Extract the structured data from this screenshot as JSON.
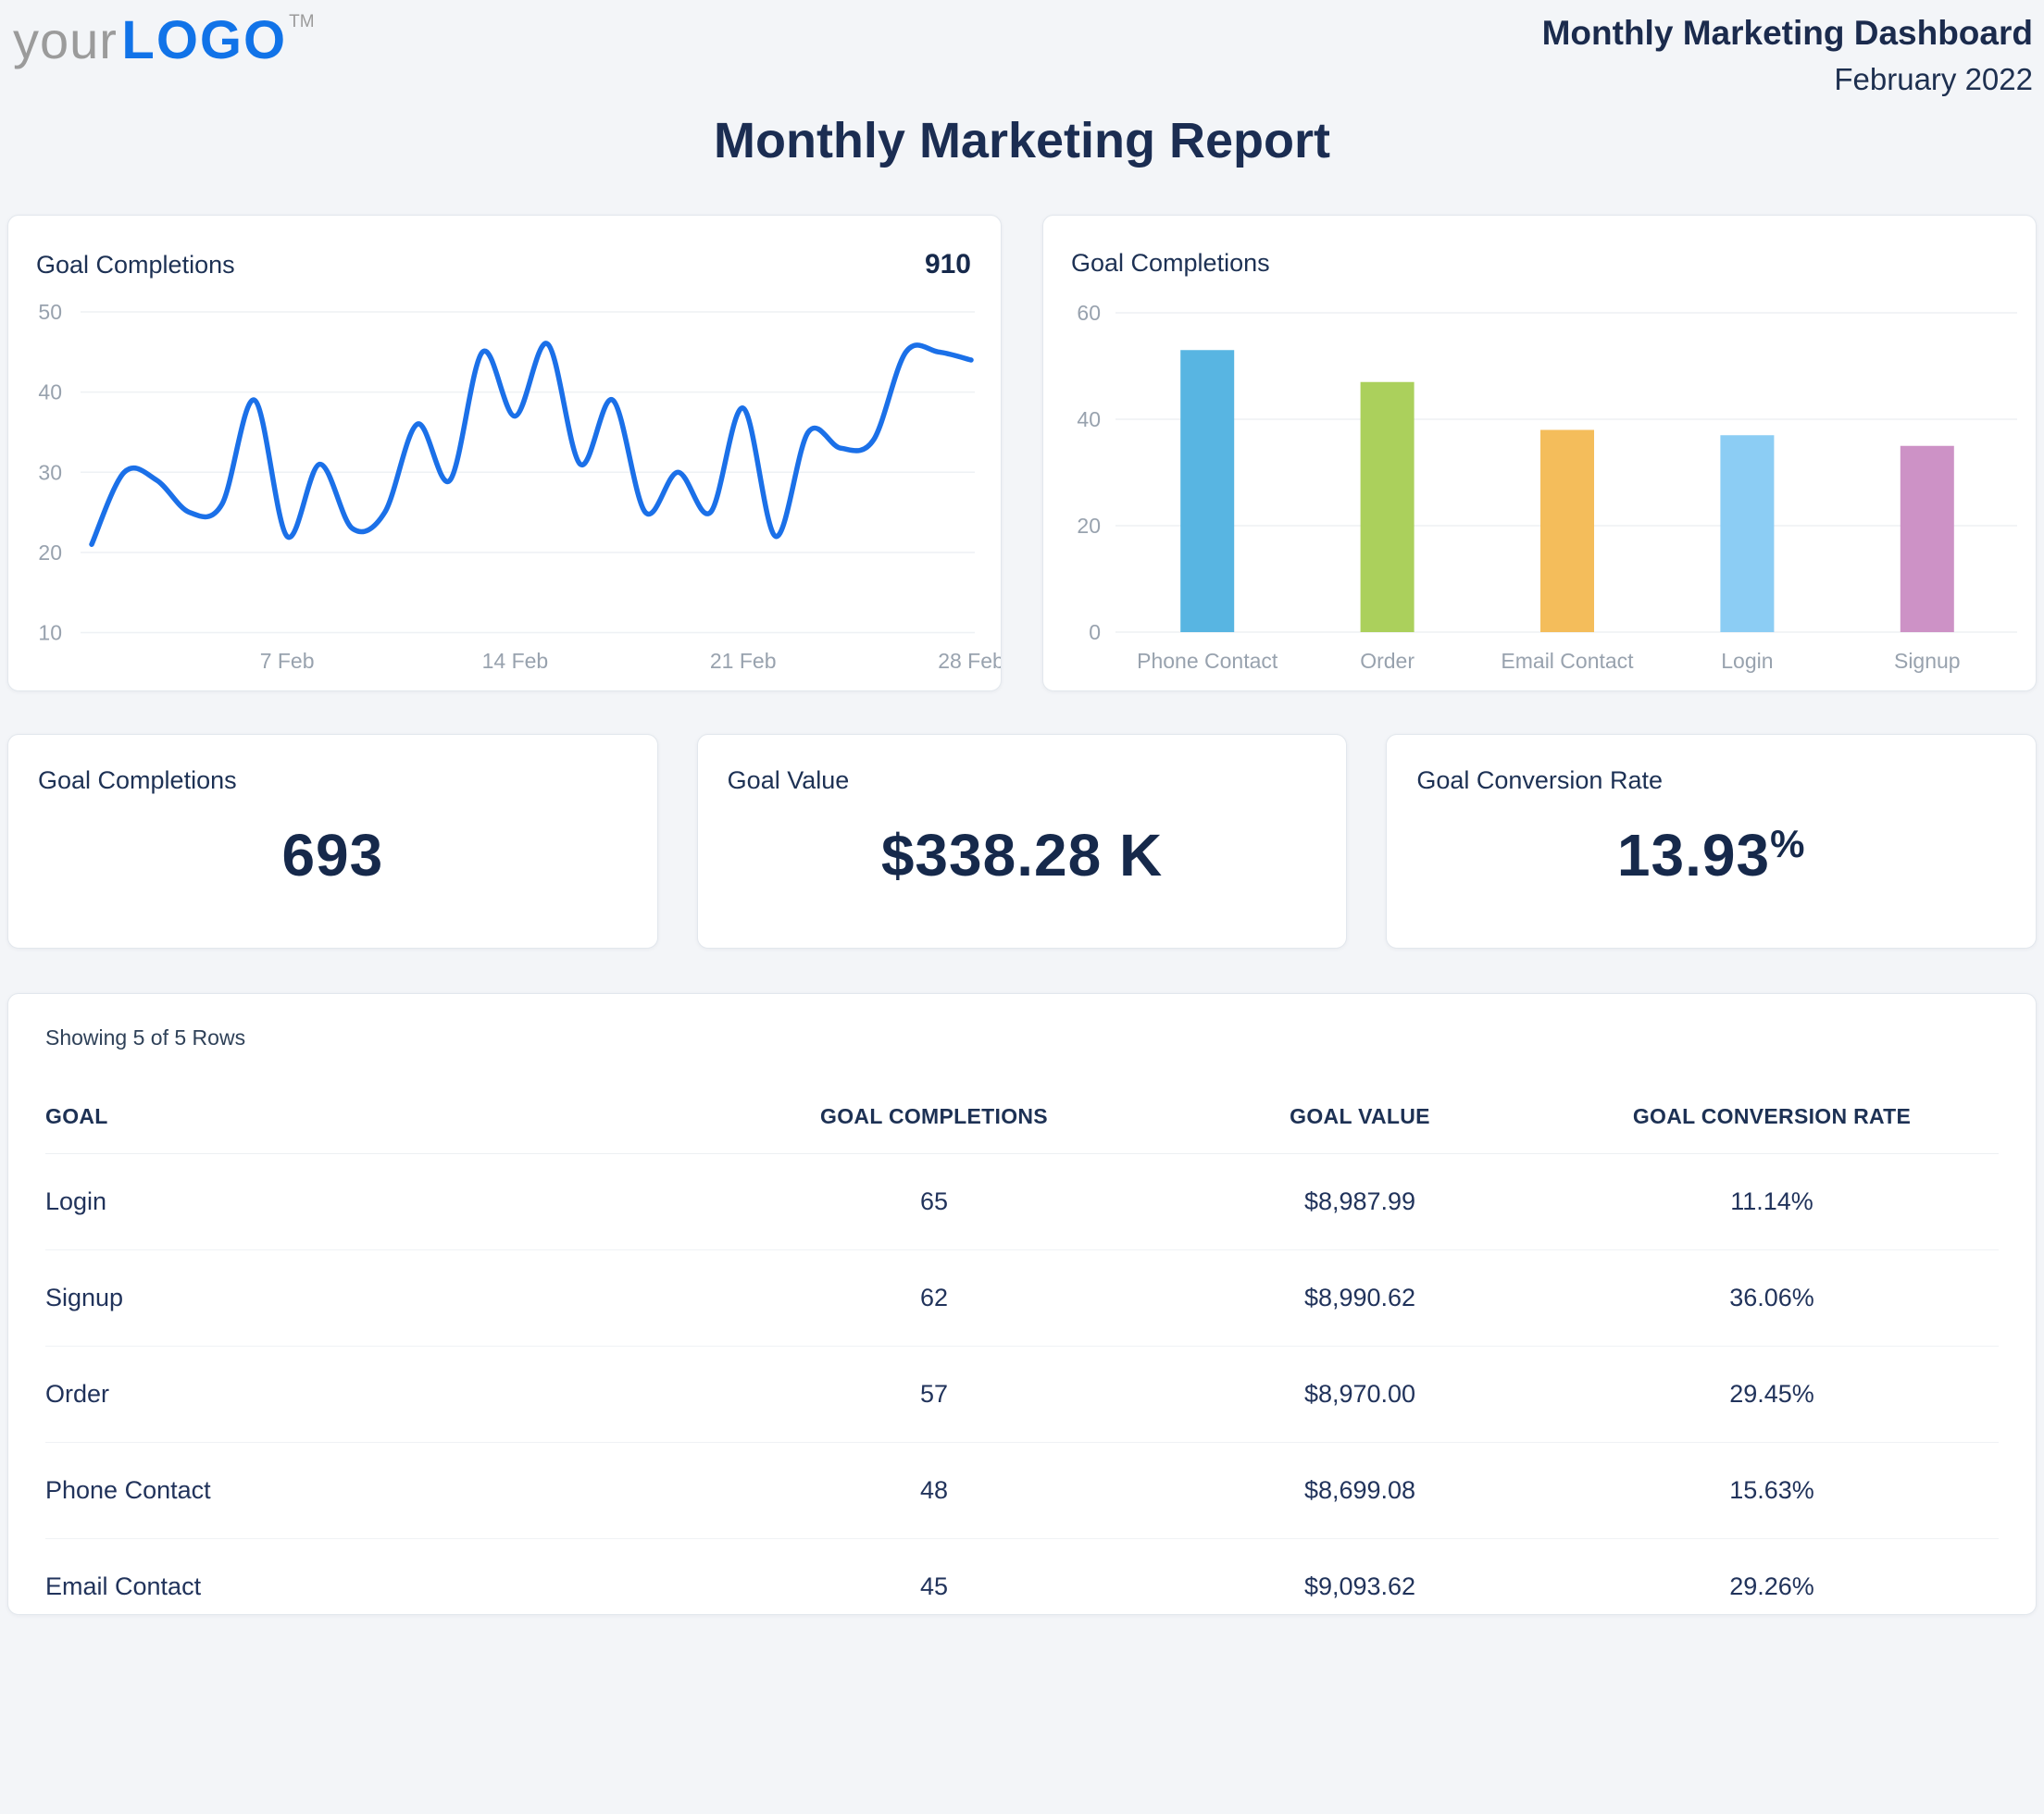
{
  "header": {
    "logo_prefix": "your",
    "logo_main": "LOGO",
    "logo_tm": "TM",
    "title": "Monthly Marketing Dashboard",
    "subtitle": "February 2022"
  },
  "page_title": "Monthly Marketing Report",
  "colors": {
    "accent_blue": "#1173e8",
    "line": "#1b70e8",
    "navy_text": "#1b2d52",
    "axis_gray": "#98a2ae",
    "grid_gray": "#eef1f4",
    "bars": [
      "#58b5e2",
      "#abd05c",
      "#f4bd5b",
      "#8ccdf4",
      "#cd92c6"
    ]
  },
  "kpis": [
    {
      "label": "Goal Completions",
      "value": "693",
      "suffix": ""
    },
    {
      "label": "Goal Value",
      "value": "$338.28 K",
      "suffix": ""
    },
    {
      "label": "Goal Conversion Rate",
      "value": "13.93",
      "suffix": "%"
    }
  ],
  "chart_data": [
    {
      "type": "line",
      "title": "Goal Completions",
      "total_label": "910",
      "x_days": [
        1,
        2,
        3,
        4,
        5,
        6,
        7,
        8,
        9,
        10,
        11,
        12,
        13,
        14,
        15,
        16,
        17,
        18,
        19,
        20,
        21,
        22,
        23,
        24,
        25,
        26,
        27,
        28
      ],
      "values": [
        21,
        30,
        29,
        25,
        26,
        39,
        22,
        31,
        23,
        25,
        36,
        29,
        45,
        37,
        46,
        31,
        39,
        25,
        30,
        25,
        38,
        22,
        35,
        33,
        34,
        45,
        45,
        44
      ],
      "x_ticks": [
        {
          "day": 7,
          "label": "7 Feb"
        },
        {
          "day": 14,
          "label": "14 Feb"
        },
        {
          "day": 21,
          "label": "21 Feb"
        },
        {
          "day": 28,
          "label": "28 Feb"
        }
      ],
      "y_ticks": [
        10,
        20,
        30,
        40,
        50
      ],
      "ylim": [
        10,
        50
      ],
      "color": "#1b70e8",
      "grid": true,
      "legend": "none"
    },
    {
      "type": "bar",
      "title": "Goal Completions",
      "categories": [
        "Phone Contact",
        "Order",
        "Email Contact",
        "Login",
        "Signup"
      ],
      "values": [
        53,
        47,
        38,
        37,
        35
      ],
      "bar_colors": [
        "#58b5e2",
        "#abd05c",
        "#f4bd5b",
        "#8ccdf4",
        "#cd92c6"
      ],
      "y_ticks": [
        0,
        20,
        40,
        60
      ],
      "ylim": [
        0,
        60
      ],
      "grid": true,
      "legend": "none"
    }
  ],
  "table": {
    "meta": "Showing 5 of 5 Rows",
    "headers": [
      "GOAL",
      "GOAL COMPLETIONS",
      "GOAL VALUE",
      "GOAL CONVERSION RATE"
    ],
    "rows": [
      {
        "goal": "Login",
        "completions": "65",
        "value": "$8,987.99",
        "conversion": "11.14%"
      },
      {
        "goal": "Signup",
        "completions": "62",
        "value": "$8,990.62",
        "conversion": "36.06%"
      },
      {
        "goal": "Order",
        "completions": "57",
        "value": "$8,970.00",
        "conversion": "29.45%"
      },
      {
        "goal": "Phone Contact",
        "completions": "48",
        "value": "$8,699.08",
        "conversion": "15.63%"
      },
      {
        "goal": "Email Contact",
        "completions": "45",
        "value": "$9,093.62",
        "conversion": "29.26%"
      }
    ]
  }
}
